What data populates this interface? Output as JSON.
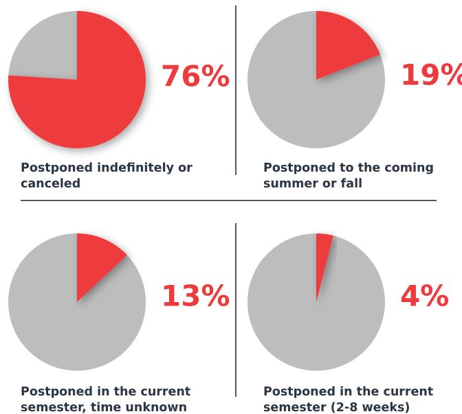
{
  "chart_data": [
    {
      "type": "pie",
      "values": [
        76,
        24
      ],
      "value_labels": [
        "76%",
        null
      ],
      "colors": [
        "#ee3a3d",
        "#bdbdbd"
      ],
      "label": [
        "Postponed indefinitely or",
        "canceled"
      ]
    },
    {
      "type": "pie",
      "values": [
        19,
        81
      ],
      "value_labels": [
        "19%",
        null
      ],
      "colors": [
        "#ee3a3d",
        "#bdbdbd"
      ],
      "label": [
        "Postponed to the coming",
        "summer or fall"
      ]
    },
    {
      "type": "pie",
      "values": [
        13,
        87
      ],
      "value_labels": [
        "13%",
        null
      ],
      "colors": [
        "#ee3a3d",
        "#bdbdbd"
      ],
      "label": [
        "Postponed in the current",
        "semester, time unknown"
      ]
    },
    {
      "type": "pie",
      "values": [
        4,
        96
      ],
      "value_labels": [
        "4%",
        null
      ],
      "colors": [
        "#ee3a3d",
        "#bdbdbd"
      ],
      "label": [
        "Postponed in the current",
        "semester (2-8 weeks)"
      ]
    }
  ]
}
